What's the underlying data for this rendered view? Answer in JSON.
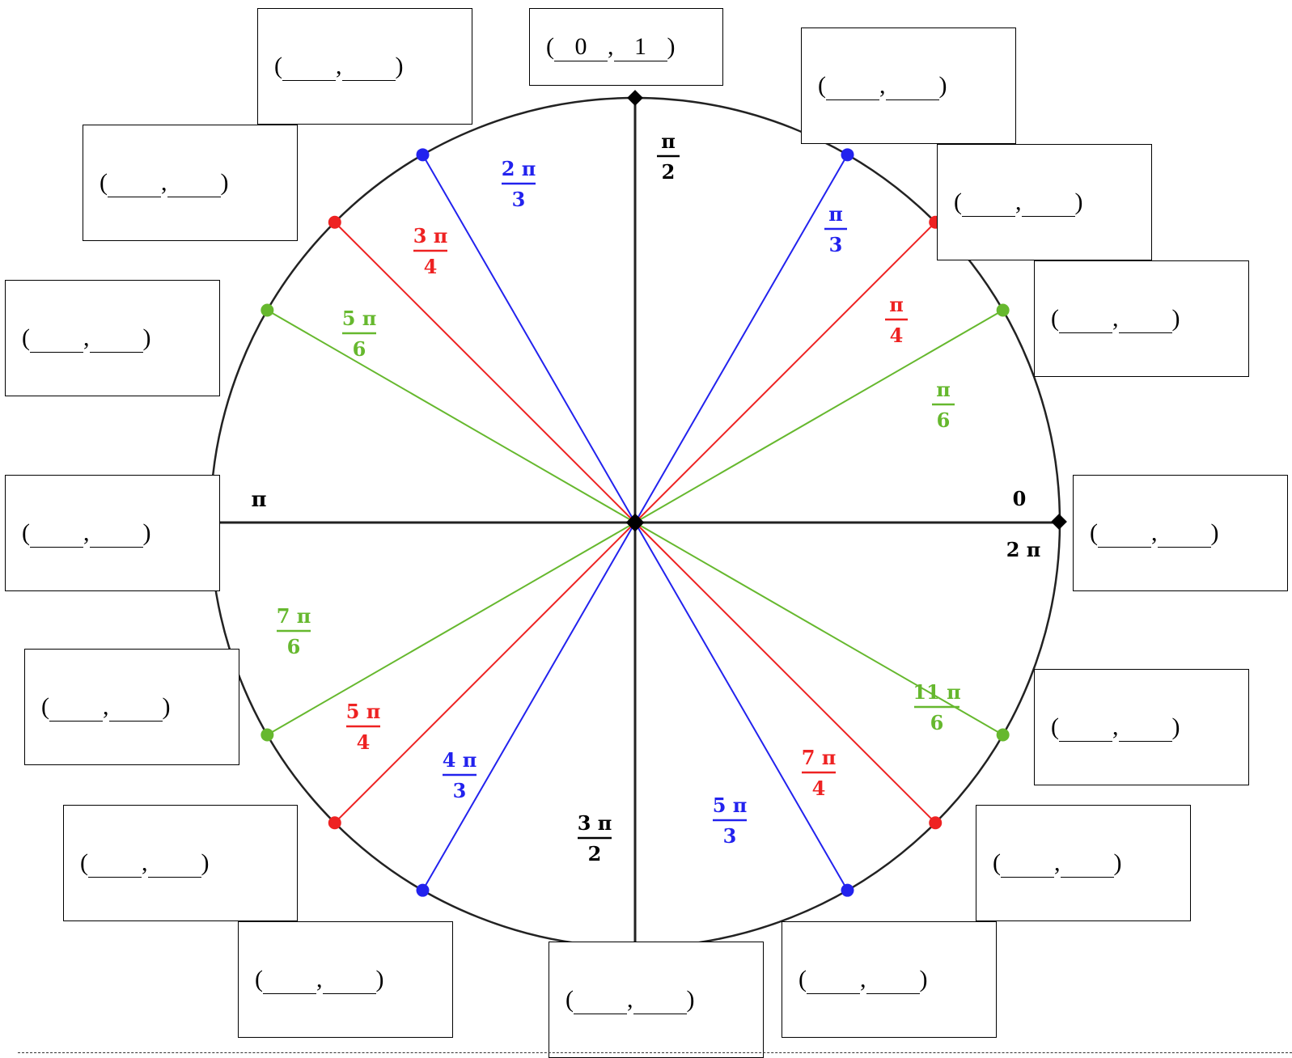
{
  "diagram": {
    "axis_labels": {
      "zero": "0",
      "two_pi": "2 π",
      "pi": "π"
    },
    "colors": {
      "axes": "#000000",
      "pi_over_6": "#66b82e",
      "pi_over_4": "#ee2222",
      "pi_over_3": "#2222ee"
    },
    "angles": [
      {
        "id": "pi6",
        "deg": 30,
        "num": "π",
        "den": "6",
        "color": "#66b82e",
        "dot_color": "#66b82e"
      },
      {
        "id": "pi4",
        "deg": 45,
        "num": "π",
        "den": "4",
        "color": "#ee2222",
        "dot_color": "#ee2222"
      },
      {
        "id": "pi3",
        "deg": 60,
        "num": "π",
        "den": "3",
        "color": "#2222ee",
        "dot_color": "#2222ee"
      },
      {
        "id": "pi2",
        "deg": 90,
        "num": "π",
        "den": "2",
        "color": "#000000",
        "dot_color": "#000000"
      },
      {
        "id": "2pi3",
        "deg": 120,
        "num": "2 π",
        "den": "3",
        "color": "#2222ee",
        "dot_color": "#2222ee"
      },
      {
        "id": "3pi4",
        "deg": 135,
        "num": "3 π",
        "den": "4",
        "color": "#ee2222",
        "dot_color": "#ee2222"
      },
      {
        "id": "5pi6",
        "deg": 150,
        "num": "5 π",
        "den": "6",
        "color": "#66b82e",
        "dot_color": "#66b82e"
      },
      {
        "id": "7pi6",
        "deg": 210,
        "num": "7 π",
        "den": "6",
        "color": "#66b82e",
        "dot_color": "#66b82e"
      },
      {
        "id": "5pi4",
        "deg": 225,
        "num": "5 π",
        "den": "4",
        "color": "#ee2222",
        "dot_color": "#ee2222"
      },
      {
        "id": "4pi3",
        "deg": 240,
        "num": "4 π",
        "den": "3",
        "color": "#2222ee",
        "dot_color": "#2222ee"
      },
      {
        "id": "3pi2",
        "deg": 270,
        "num": "3 π",
        "den": "2",
        "color": "#000000",
        "dot_color": "#000000"
      },
      {
        "id": "5pi3",
        "deg": 300,
        "num": "5 π",
        "den": "3",
        "color": "#2222ee",
        "dot_color": "#2222ee"
      },
      {
        "id": "7pi4",
        "deg": 315,
        "num": "7 π",
        "den": "4",
        "color": "#ee2222",
        "dot_color": "#ee2222"
      },
      {
        "id": "11pi6",
        "deg": 330,
        "num": "11 π",
        "den": "6",
        "color": "#66b82e",
        "dot_color": "#66b82e"
      }
    ]
  },
  "coordinate_boxes": [
    {
      "id": "box-pi2",
      "x_value": "0",
      "y_value": "1"
    },
    {
      "id": "box-2pi3",
      "x_value": "",
      "y_value": ""
    },
    {
      "id": "box-3pi4",
      "x_value": "",
      "y_value": ""
    },
    {
      "id": "box-5pi6",
      "x_value": "",
      "y_value": ""
    },
    {
      "id": "box-pi",
      "x_value": "",
      "y_value": ""
    },
    {
      "id": "box-7pi6",
      "x_value": "",
      "y_value": ""
    },
    {
      "id": "box-5pi4",
      "x_value": "",
      "y_value": ""
    },
    {
      "id": "box-4pi3",
      "x_value": "",
      "y_value": ""
    },
    {
      "id": "box-3pi2",
      "x_value": "",
      "y_value": ""
    },
    {
      "id": "box-5pi3",
      "x_value": "",
      "y_value": ""
    },
    {
      "id": "box-7pi4",
      "x_value": "",
      "y_value": ""
    },
    {
      "id": "box-11pi6",
      "x_value": "",
      "y_value": ""
    },
    {
      "id": "box-0",
      "x_value": "",
      "y_value": ""
    },
    {
      "id": "box-pi6",
      "x_value": "",
      "y_value": ""
    },
    {
      "id": "box-pi4",
      "x_value": "",
      "y_value": ""
    },
    {
      "id": "box-pi3",
      "x_value": "",
      "y_value": ""
    }
  ],
  "punctuation": {
    "open": "(",
    "comma": ",",
    "close": ")"
  }
}
